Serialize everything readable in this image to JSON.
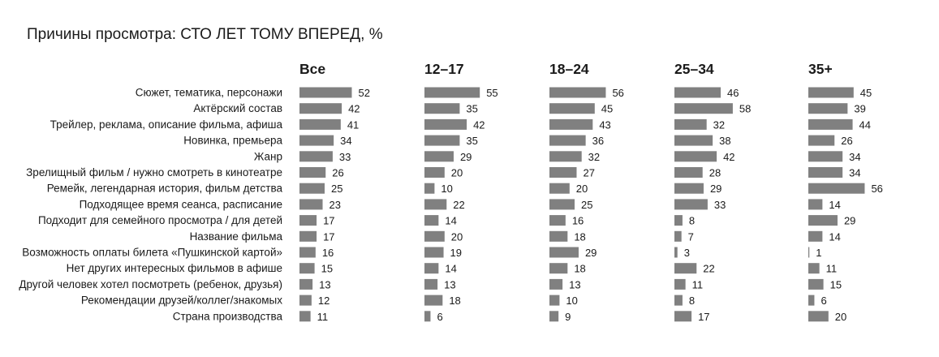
{
  "chart_data": {
    "type": "bar",
    "title": "Причины просмотра: СТО ЛЕТ ТОМУ ВПЕРЕД, %",
    "bar_color": "#808080",
    "categories": [
      "Сюжет, тематика, персонажи",
      "Актёрский состав",
      "Трейлер, реклама, описание фильма, афиша",
      "Новинка, премьера",
      "Жанр",
      "Зрелищный фильм / нужно смотреть в кинотеатре",
      "Ремейк, легендарная история, фильм детства",
      "Подходящее время сеанса, расписание",
      "Подходит для семейного просмотра / для детей",
      "Название фильма",
      "Возможность оплаты билета «Пушкинской картой»",
      "Нет других интересных фильмов в афише",
      "Другой человек хотел посмотреть (ребенок, друзья)",
      "Рекомендации друзей/коллег/знакомых",
      "Страна производства"
    ],
    "series": [
      {
        "name": "Все",
        "values": [
          52,
          42,
          41,
          34,
          33,
          26,
          25,
          23,
          17,
          17,
          16,
          15,
          13,
          12,
          11
        ]
      },
      {
        "name": "12–17",
        "values": [
          55,
          35,
          42,
          35,
          29,
          20,
          10,
          22,
          14,
          20,
          19,
          14,
          13,
          18,
          6
        ]
      },
      {
        "name": "18–24",
        "values": [
          56,
          45,
          43,
          36,
          32,
          27,
          20,
          25,
          16,
          18,
          29,
          18,
          13,
          10,
          9
        ]
      },
      {
        "name": "25–34",
        "values": [
          46,
          58,
          32,
          38,
          42,
          28,
          29,
          33,
          8,
          7,
          3,
          22,
          11,
          8,
          17
        ]
      },
      {
        "name": "35+",
        "values": [
          45,
          39,
          44,
          26,
          34,
          34,
          56,
          14,
          29,
          14,
          1,
          11,
          15,
          6,
          20
        ]
      }
    ]
  }
}
